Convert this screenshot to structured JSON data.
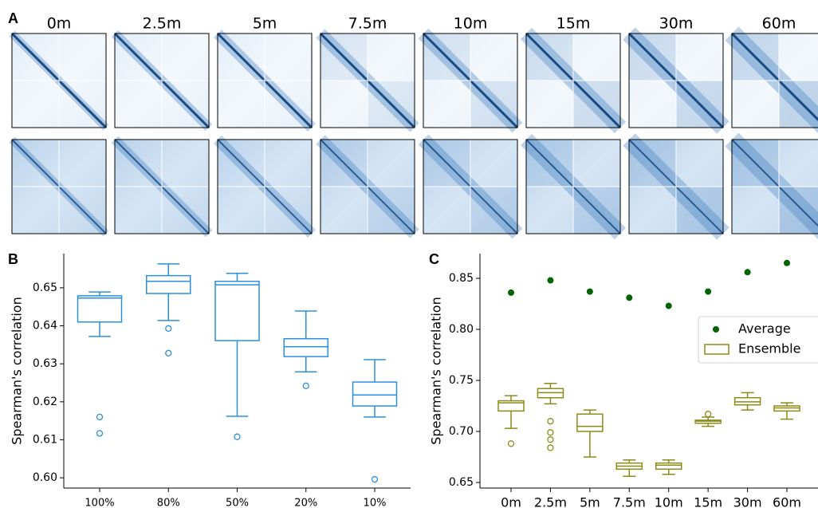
{
  "panel_a": {
    "label": "A",
    "timepoints": [
      "0m",
      "2.5m",
      "5m",
      "7.5m",
      "10m",
      "15m",
      "30m",
      "60m"
    ]
  },
  "chart_data": [
    {
      "type": "box",
      "panel": "B",
      "ylabel": "Spearman's correlation",
      "categories": [
        "100%",
        "80%",
        "50%",
        "20%",
        "10%"
      ],
      "color": "#2b8fe0",
      "boxes": [
        {
          "whislo": 0.6372,
          "q1": 0.641,
          "med": 0.6473,
          "q3": 0.6479,
          "whishi": 0.6489,
          "fliers": [
            0.616,
            0.6117
          ]
        },
        {
          "whislo": 0.6414,
          "q1": 0.6485,
          "med": 0.6517,
          "q3": 0.6532,
          "whishi": 0.6563,
          "fliers": [
            0.6393,
            0.6328
          ]
        },
        {
          "whislo": 0.6162,
          "q1": 0.6361,
          "med": 0.6508,
          "q3": 0.6517,
          "whishi": 0.6538,
          "fliers": [
            0.6108
          ]
        },
        {
          "whislo": 0.6279,
          "q1": 0.6319,
          "med": 0.6345,
          "q3": 0.6366,
          "whishi": 0.6439,
          "fliers": [
            0.6242
          ]
        },
        {
          "whislo": 0.616,
          "q1": 0.6189,
          "med": 0.6218,
          "q3": 0.6252,
          "whishi": 0.6311,
          "fliers": [
            0.5996
          ]
        }
      ],
      "ylim": [
        0.5973,
        0.659
      ],
      "yticks": [
        {
          "value": 0.6,
          "label": "0.60"
        },
        0.61,
        0.62,
        0.63,
        0.64,
        0.65
      ]
    },
    {
      "type": "box",
      "panel": "C",
      "ylabel": "Spearman's correlation",
      "categories": [
        "0m",
        "2.5m",
        "5m",
        "7.5m",
        "10m",
        "15m",
        "30m",
        "60m"
      ],
      "series": [
        {
          "name": "Average",
          "type": "scatter",
          "color": "#006400",
          "values": [
            0.836,
            0.848,
            0.837,
            0.831,
            0.823,
            0.837,
            0.856,
            0.865
          ]
        },
        {
          "name": "Ensemble",
          "type": "box",
          "color": "#8b8b19",
          "boxes": [
            {
              "whislo": 0.703,
              "q1": 0.72,
              "med": 0.728,
              "q3": 0.73,
              "whishi": 0.735,
              "fliers": [
                0.688
              ]
            },
            {
              "whislo": 0.727,
              "q1": 0.733,
              "med": 0.738,
              "q3": 0.742,
              "whishi": 0.747,
              "fliers": [
                0.71,
                0.699,
                0.692,
                0.684
              ]
            },
            {
              "whislo": 0.675,
              "q1": 0.7,
              "med": 0.705,
              "q3": 0.717,
              "whishi": 0.721,
              "fliers": []
            },
            {
              "whislo": 0.656,
              "q1": 0.663,
              "med": 0.666,
              "q3": 0.669,
              "whishi": 0.672,
              "fliers": []
            },
            {
              "whislo": 0.658,
              "q1": 0.663,
              "med": 0.667,
              "q3": 0.669,
              "whishi": 0.672,
              "fliers": []
            },
            {
              "whislo": 0.705,
              "q1": 0.708,
              "med": 0.71,
              "q3": 0.711,
              "whishi": 0.714,
              "fliers": [
                0.717
              ]
            },
            {
              "whislo": 0.721,
              "q1": 0.726,
              "med": 0.729,
              "q3": 0.733,
              "whishi": 0.738,
              "fliers": []
            },
            {
              "whislo": 0.712,
              "q1": 0.72,
              "med": 0.723,
              "q3": 0.725,
              "whishi": 0.728,
              "fliers": []
            }
          ]
        }
      ],
      "legend": "center right",
      "ylim": [
        0.6445,
        0.8742
      ],
      "yticks": [
        0.65,
        {
          "value": 0.7,
          "label": "0.70"
        },
        0.75,
        {
          "value": 0.8,
          "label": "0.80"
        },
        0.85
      ]
    }
  ]
}
